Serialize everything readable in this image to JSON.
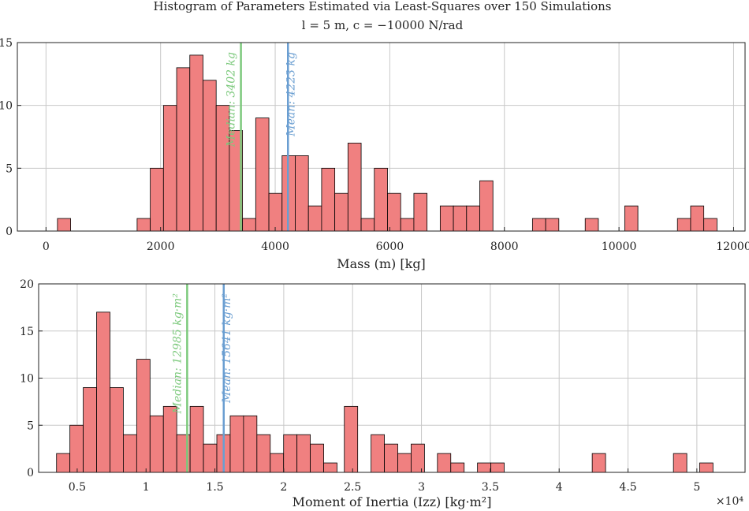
{
  "figure": {
    "title_line1": "Histogram of Parameters Estimated via Least-Squares over 150 Simulations",
    "title_line2": "l = 5 m, c = −10000 N/rad"
  },
  "colors": {
    "bar_fill": "#f08080",
    "median_line": "#7cc97c",
    "mean_line": "#6a9ed1"
  },
  "chart_data": [
    {
      "type": "bar",
      "title": "",
      "xlabel": "Mass (m) [kg]",
      "ylabel": "",
      "xlim": [
        -500,
        12200
      ],
      "ylim": [
        0,
        15
      ],
      "xticks": [
        0,
        2000,
        4000,
        6000,
        8000,
        10000,
        12000
      ],
      "xtick_labels": [
        "0",
        "2000",
        "4000",
        "6000",
        "8000",
        "10000",
        "12000"
      ],
      "yticks": [
        0,
        5,
        10,
        15
      ],
      "ytick_labels": [
        "0",
        "5",
        "10",
        "15"
      ],
      "multiplier_label": "",
      "bins": [
        {
          "start": 200,
          "end": 430,
          "count": 1
        },
        {
          "start": 1590,
          "end": 1820,
          "count": 1
        },
        {
          "start": 1820,
          "end": 2050,
          "count": 5
        },
        {
          "start": 2050,
          "end": 2280,
          "count": 10
        },
        {
          "start": 2280,
          "end": 2510,
          "count": 13
        },
        {
          "start": 2510,
          "end": 2740,
          "count": 14
        },
        {
          "start": 2740,
          "end": 2970,
          "count": 12
        },
        {
          "start": 2970,
          "end": 3200,
          "count": 10
        },
        {
          "start": 3200,
          "end": 3430,
          "count": 8
        },
        {
          "start": 3430,
          "end": 3660,
          "count": 1
        },
        {
          "start": 3660,
          "end": 3890,
          "count": 9
        },
        {
          "start": 3890,
          "end": 4120,
          "count": 3
        },
        {
          "start": 4120,
          "end": 4350,
          "count": 6
        },
        {
          "start": 4350,
          "end": 4580,
          "count": 6
        },
        {
          "start": 4580,
          "end": 4810,
          "count": 2
        },
        {
          "start": 4810,
          "end": 5040,
          "count": 5
        },
        {
          "start": 5040,
          "end": 5270,
          "count": 3
        },
        {
          "start": 5270,
          "end": 5500,
          "count": 7
        },
        {
          "start": 5500,
          "end": 5730,
          "count": 1
        },
        {
          "start": 5730,
          "end": 5960,
          "count": 5
        },
        {
          "start": 5960,
          "end": 6190,
          "count": 3
        },
        {
          "start": 6190,
          "end": 6420,
          "count": 1
        },
        {
          "start": 6420,
          "end": 6650,
          "count": 3
        },
        {
          "start": 6880,
          "end": 7110,
          "count": 2
        },
        {
          "start": 7110,
          "end": 7340,
          "count": 2
        },
        {
          "start": 7340,
          "end": 7570,
          "count": 2
        },
        {
          "start": 7570,
          "end": 7800,
          "count": 4
        },
        {
          "start": 8490,
          "end": 8720,
          "count": 1
        },
        {
          "start": 8720,
          "end": 8950,
          "count": 1
        },
        {
          "start": 9410,
          "end": 9640,
          "count": 1
        },
        {
          "start": 10100,
          "end": 10330,
          "count": 2
        },
        {
          "start": 11020,
          "end": 11250,
          "count": 1
        },
        {
          "start": 11250,
          "end": 11480,
          "count": 2
        },
        {
          "start": 11480,
          "end": 11710,
          "count": 1
        }
      ],
      "lines": [
        {
          "name": "median",
          "x": 3402,
          "label": "Median: 3402 kg"
        },
        {
          "name": "mean",
          "x": 4223,
          "label": "Mean: 4223 kg"
        }
      ]
    },
    {
      "type": "bar",
      "title": "",
      "xlabel": "Moment of Inertia (Izz) [kg·m²]",
      "ylabel": "",
      "xlim": [
        0.22,
        5.35
      ],
      "ylim": [
        0,
        20
      ],
      "xticks": [
        0.5,
        1,
        1.5,
        2,
        2.5,
        3,
        3.5,
        4,
        4.5,
        5
      ],
      "xtick_labels": [
        "0.5",
        "1",
        "1.5",
        "2",
        "2.5",
        "3",
        "3.5",
        "4",
        "4.5",
        "5"
      ],
      "yticks": [
        0,
        5,
        10,
        15,
        20
      ],
      "ytick_labels": [
        "0",
        "5",
        "10",
        "15",
        "20"
      ],
      "multiplier_label": "×10⁴",
      "bins": [
        {
          "start": 0.35,
          "end": 0.447,
          "count": 2
        },
        {
          "start": 0.447,
          "end": 0.544,
          "count": 5
        },
        {
          "start": 0.544,
          "end": 0.641,
          "count": 9
        },
        {
          "start": 0.641,
          "end": 0.738,
          "count": 17
        },
        {
          "start": 0.738,
          "end": 0.835,
          "count": 9
        },
        {
          "start": 0.835,
          "end": 0.932,
          "count": 4
        },
        {
          "start": 0.932,
          "end": 1.029,
          "count": 12
        },
        {
          "start": 1.029,
          "end": 1.126,
          "count": 6
        },
        {
          "start": 1.126,
          "end": 1.223,
          "count": 7
        },
        {
          "start": 1.223,
          "end": 1.32,
          "count": 4
        },
        {
          "start": 1.32,
          "end": 1.417,
          "count": 7
        },
        {
          "start": 1.417,
          "end": 1.514,
          "count": 3
        },
        {
          "start": 1.514,
          "end": 1.611,
          "count": 4
        },
        {
          "start": 1.611,
          "end": 1.708,
          "count": 6
        },
        {
          "start": 1.708,
          "end": 1.805,
          "count": 6
        },
        {
          "start": 1.805,
          "end": 1.902,
          "count": 4
        },
        {
          "start": 1.902,
          "end": 1.999,
          "count": 2
        },
        {
          "start": 1.999,
          "end": 2.096,
          "count": 4
        },
        {
          "start": 2.096,
          "end": 2.193,
          "count": 4
        },
        {
          "start": 2.193,
          "end": 2.29,
          "count": 3
        },
        {
          "start": 2.29,
          "end": 2.387,
          "count": 1
        },
        {
          "start": 2.44,
          "end": 2.537,
          "count": 7
        },
        {
          "start": 2.634,
          "end": 2.731,
          "count": 4
        },
        {
          "start": 2.731,
          "end": 2.828,
          "count": 3
        },
        {
          "start": 2.828,
          "end": 2.925,
          "count": 2
        },
        {
          "start": 2.925,
          "end": 3.022,
          "count": 3
        },
        {
          "start": 3.116,
          "end": 3.213,
          "count": 2
        },
        {
          "start": 3.213,
          "end": 3.31,
          "count": 1
        },
        {
          "start": 3.407,
          "end": 3.504,
          "count": 1
        },
        {
          "start": 3.504,
          "end": 3.601,
          "count": 1
        },
        {
          "start": 4.24,
          "end": 4.337,
          "count": 2
        },
        {
          "start": 4.83,
          "end": 4.927,
          "count": 2
        },
        {
          "start": 5.02,
          "end": 5.117,
          "count": 1
        }
      ],
      "lines": [
        {
          "name": "median",
          "x": 1.2985,
          "label": "Median: 12985 kg·m²"
        },
        {
          "name": "mean",
          "x": 1.5641,
          "label": "Mean: 15641 kg·m²"
        }
      ]
    }
  ]
}
